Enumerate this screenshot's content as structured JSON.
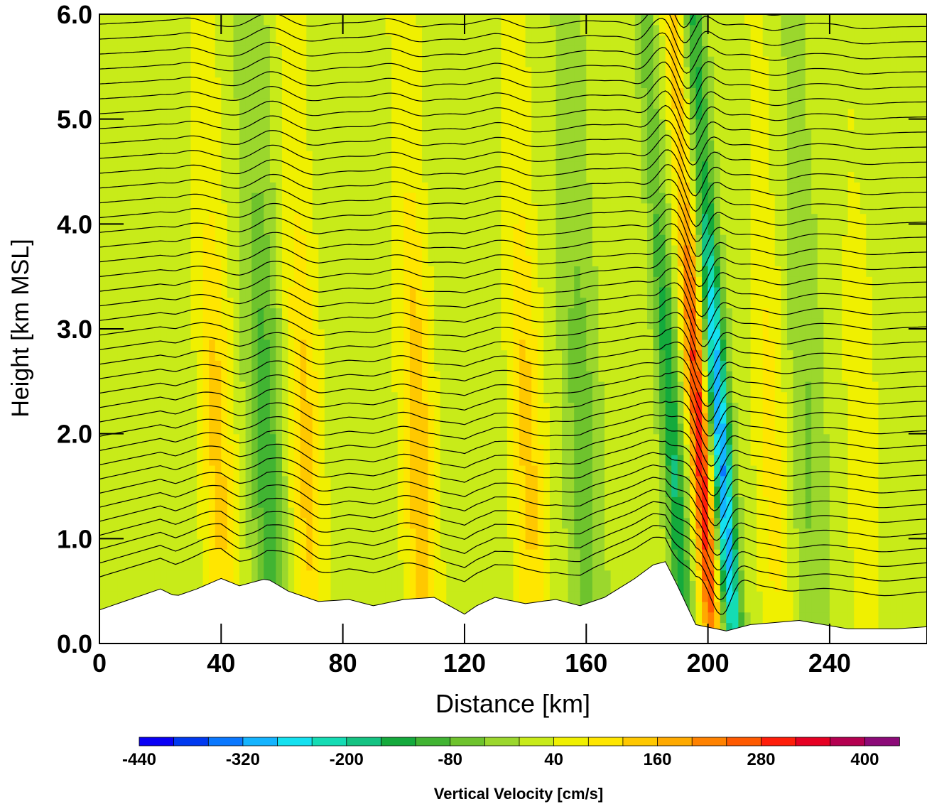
{
  "chart_data": {
    "type": "heatmap",
    "title": "",
    "xlabel": "Distance [km]",
    "ylabel": "Height [km MSL]",
    "xlim": [
      0,
      272
    ],
    "ylim": [
      0,
      6
    ],
    "x_ticks": [
      "0",
      "40",
      "80",
      "120",
      "160",
      "200",
      "240"
    ],
    "y_ticks": [
      "0.0",
      "1.0",
      "2.0",
      "3.0",
      "4.0",
      "5.0",
      "6.0"
    ],
    "x_tick_values": [
      0,
      40,
      80,
      120,
      160,
      200,
      240
    ],
    "y_tick_values": [
      0,
      1,
      2,
      3,
      4,
      5,
      6
    ],
    "overlay": "black contour lines (isentropes) with small white labels",
    "colorbar": {
      "label": "Vertical Velocity [cm/s]",
      "tick_labels": [
        "-440",
        "-320",
        "-200",
        "-80",
        "40",
        "160",
        "280",
        "400"
      ],
      "levels": [
        -440,
        -400,
        -360,
        -320,
        -280,
        -240,
        -200,
        -160,
        -120,
        -80,
        -40,
        0,
        40,
        80,
        120,
        160,
        200,
        240,
        280,
        320,
        360,
        400,
        440
      ],
      "colors": [
        "#0a00f5",
        "#0039f0",
        "#0a78ff",
        "#14b4ff",
        "#14e1f0",
        "#14dcb4",
        "#14c382",
        "#14aa3c",
        "#41b432",
        "#6ec32d",
        "#9bd72d",
        "#c8eb19",
        "#f0f000",
        "#ffe600",
        "#ffc800",
        "#ffaa00",
        "#ff8200",
        "#ff5a00",
        "#ff1e0a",
        "#e60023",
        "#b40050",
        "#8c0a78"
      ]
    },
    "terrain_km": [
      [
        0,
        0.32
      ],
      [
        10,
        0.42
      ],
      [
        20,
        0.52
      ],
      [
        25,
        0.45
      ],
      [
        32,
        0.52
      ],
      [
        40,
        0.62
      ],
      [
        46,
        0.55
      ],
      [
        55,
        0.62
      ],
      [
        62,
        0.5
      ],
      [
        72,
        0.4
      ],
      [
        82,
        0.42
      ],
      [
        90,
        0.36
      ],
      [
        100,
        0.42
      ],
      [
        110,
        0.44
      ],
      [
        120,
        0.28
      ],
      [
        124,
        0.36
      ],
      [
        130,
        0.44
      ],
      [
        140,
        0.38
      ],
      [
        150,
        0.42
      ],
      [
        158,
        0.36
      ],
      [
        166,
        0.44
      ],
      [
        176,
        0.62
      ],
      [
        182,
        0.75
      ],
      [
        186,
        0.78
      ],
      [
        190,
        0.55
      ],
      [
        196,
        0.18
      ],
      [
        206,
        0.12
      ],
      [
        214,
        0.18
      ],
      [
        230,
        0.22
      ],
      [
        246,
        0.14
      ],
      [
        262,
        0.14
      ],
      [
        272,
        0.16
      ]
    ],
    "updrafts_cm_s": [
      {
        "x_km": 38,
        "peak": 120
      },
      {
        "x_km": 67,
        "peak": 120
      },
      {
        "x_km": 104,
        "peak": 140
      },
      {
        "x_km": 140,
        "peak": 120
      },
      {
        "x_km": 196,
        "peak": 300
      },
      {
        "x_km": 220,
        "peak": 80
      },
      {
        "x_km": 250,
        "peak": 60
      }
    ],
    "downdrafts_cm_s": [
      {
        "x_km": 54,
        "peak": -120
      },
      {
        "x_km": 158,
        "peak": -80
      },
      {
        "x_km": 187,
        "peak": -180
      },
      {
        "x_km": 203,
        "peak": -340
      },
      {
        "x_km": 232,
        "peak": -60
      }
    ]
  }
}
